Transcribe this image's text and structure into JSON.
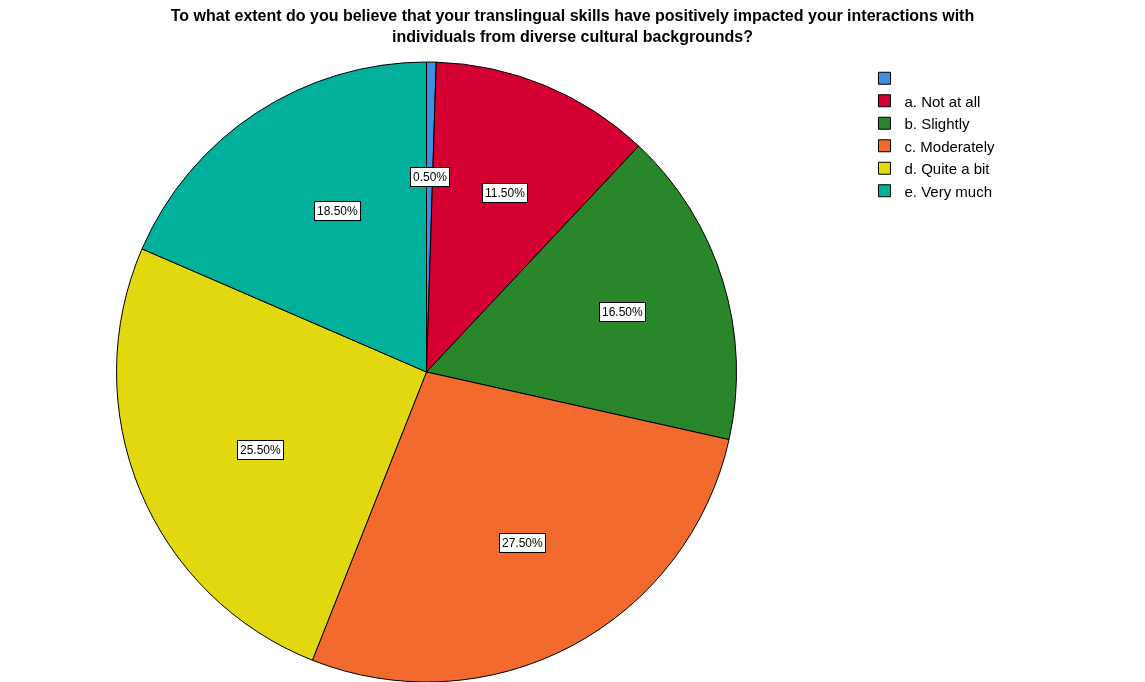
{
  "chart_data": {
    "type": "pie",
    "title": "To what extent do you believe that your translingual skills have positively impacted your interactions with individuals from diverse cultural backgrounds?",
    "categories": [
      null,
      "a. Not at all",
      "b. Slightly",
      "c. Moderately",
      "d. Quite a bit",
      "e. Very much"
    ],
    "values": [
      0.5,
      11.5,
      16.5,
      27.5,
      25.5,
      18.5
    ],
    "value_labels": [
      "0.50%",
      "11.50%",
      "16.50%",
      "27.50%",
      "25.50%",
      "18.50%"
    ],
    "colors": [
      "#3f8fdc",
      "#d50032",
      "#2a862a",
      "#f26a2e",
      "#e2d810",
      "#00b09b"
    ],
    "legend": "top right"
  }
}
